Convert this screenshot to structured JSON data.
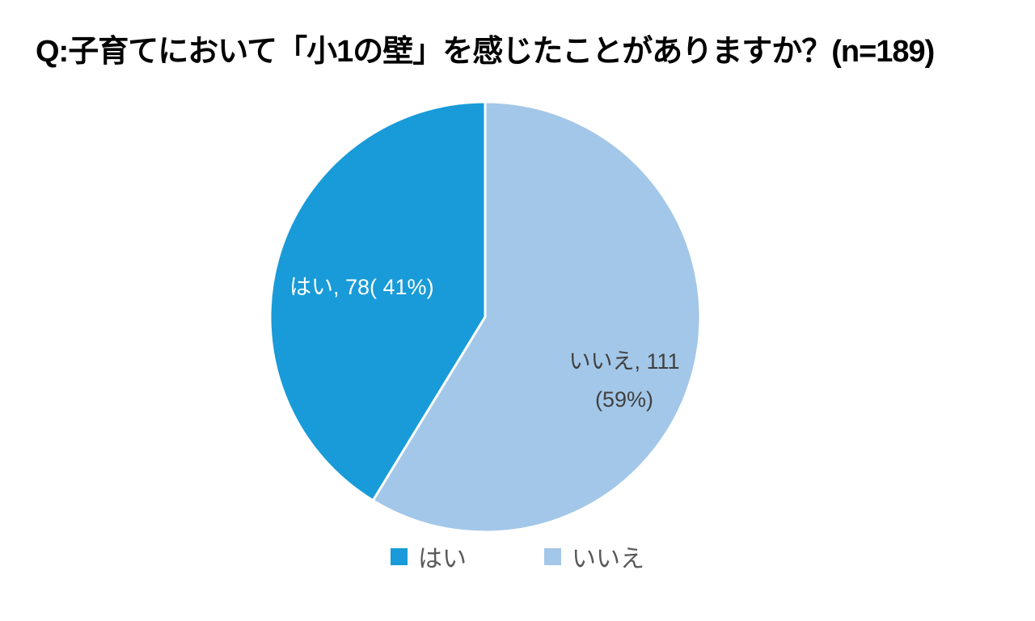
{
  "title": "Q:子育てにおいて「小1の壁」を感じたことがありますか？(n=189)",
  "chart_data": {
    "type": "pie",
    "title": "Q:子育てにおいて「小1の壁」を感じたことがありますか？(n=189)",
    "sample_size": "n=189",
    "categories": [
      "はい",
      "いいえ"
    ],
    "values": [
      78,
      111
    ],
    "percents": [
      41,
      59
    ],
    "colors": [
      "#189bd8",
      "#a3c7e8"
    ],
    "start_angle_deg": 0,
    "direction": "counterclockwise",
    "legend_position": "bottom",
    "data_labels": {
      "yes": "はい, 78( 41%)",
      "no_line1": "いいえ, 111",
      "no_line2": "(59%)"
    },
    "legend": [
      "はい",
      "いいえ"
    ]
  }
}
